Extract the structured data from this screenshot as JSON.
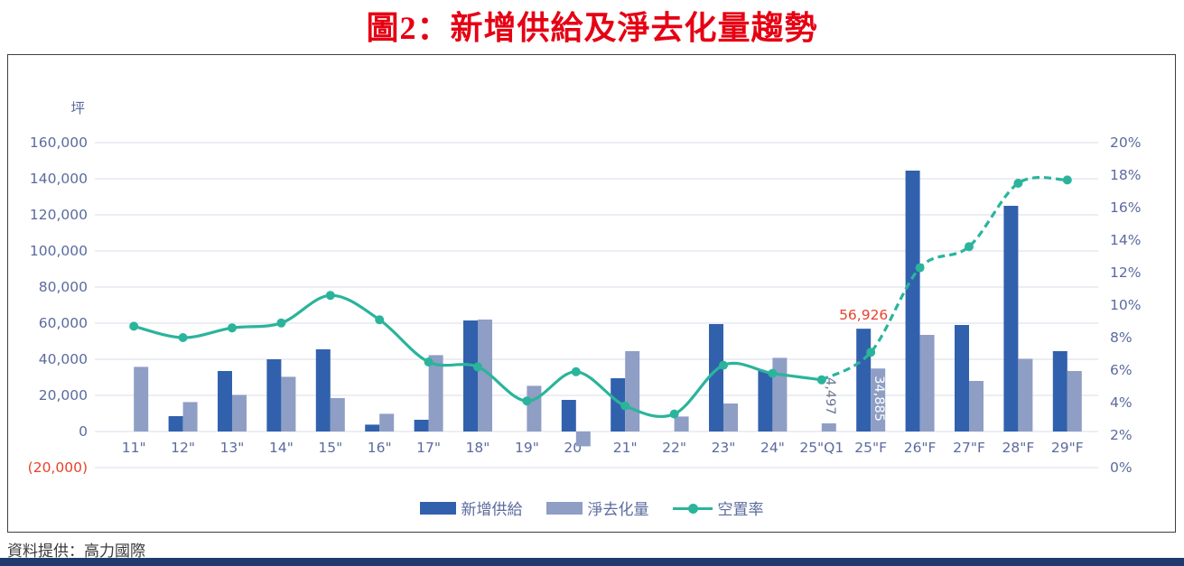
{
  "title": "圖2：新增供給及淨去化量趨勢",
  "source": "資料提供：高力國際",
  "legend": {
    "items": [
      {
        "label": "新增供給",
        "type": "bar",
        "color": "#3161ac"
      },
      {
        "label": "淨去化量",
        "type": "bar",
        "color": "#8f9ec5"
      },
      {
        "label": "空置率",
        "type": "line",
        "color": "#2bb49c"
      }
    ]
  },
  "colors": {
    "supply_bar": "#3161ac",
    "absorption_bar": "#8f9ec5",
    "vacancy_line": "#2bb49c",
    "axis_text": "#5b6b9e",
    "gridline": "#d9dce8",
    "negative_red": "#e8422c",
    "title_red": "#e60013",
    "footer_band": "#1f3a6c"
  },
  "chart_data": {
    "type": "bar+line-combo",
    "title": "圖2：新增供給及淨去化量趨勢",
    "categories": [
      "11\"",
      "12\"",
      "13\"",
      "14\"",
      "15\"",
      "16\"",
      "17\"",
      "18\"",
      "19\"",
      "20\"",
      "21\"",
      "22\"",
      "23\"",
      "24\"",
      "25\"Q1",
      "25\"F",
      "26\"F",
      "27\"F",
      "28\"F",
      "29\"F"
    ],
    "series": [
      {
        "name": "新增供給",
        "type": "bar",
        "axis": "left",
        "color": "#3161ac",
        "values": [
          null,
          8500,
          33500,
          40000,
          45500,
          3800,
          6500,
          61500,
          null,
          17500,
          29500,
          null,
          59500,
          33500,
          null,
          56926,
          144500,
          59000,
          125000,
          44500
        ]
      },
      {
        "name": "淨去化量",
        "type": "bar",
        "axis": "left",
        "color": "#8f9ec5",
        "values": [
          35800,
          16300,
          20300,
          30300,
          18500,
          9800,
          42300,
          62000,
          25300,
          -8200,
          44500,
          8300,
          15500,
          40800,
          4497,
          34885,
          53500,
          28000,
          40300,
          33500
        ]
      },
      {
        "name": "空置率",
        "type": "line",
        "axis": "right",
        "color": "#2bb49c",
        "values": [
          8.7,
          8.0,
          8.6,
          8.9,
          10.6,
          9.1,
          6.5,
          6.2,
          4.1,
          5.9,
          3.8,
          3.3,
          6.3,
          5.8,
          5.4,
          7.1,
          12.3,
          13.6,
          17.5,
          17.7
        ],
        "dashed_from_index": 14
      }
    ],
    "annotations": [
      {
        "text": "4,497",
        "series": 1,
        "index": 14,
        "placement": "above-rotated",
        "color": "#6a7592"
      },
      {
        "text": "34,885",
        "series": 1,
        "index": 15,
        "placement": "inside-rotated",
        "color": "#ffffff"
      },
      {
        "text": "56,926",
        "series": 0,
        "index": 15,
        "placement": "top",
        "color": "#e8422c"
      }
    ],
    "left_axis": {
      "unit": "坪",
      "min": -20000,
      "max": 160000,
      "tick_step": 20000,
      "labels": [
        "160,000",
        "140,000",
        "120,000",
        "100,000",
        "80,000",
        "60,000",
        "40,000",
        "20,000",
        "0",
        "(20,000)"
      ],
      "negative_label": "(20,000)"
    },
    "right_axis": {
      "min": 0,
      "max": 20,
      "tick_step": 2,
      "labels": [
        "20%",
        "18%",
        "16%",
        "14%",
        "12%",
        "10%",
        "8%",
        "6%",
        "4%",
        "2%",
        "0%"
      ]
    },
    "grid": true,
    "legend_position": "bottom-center"
  }
}
